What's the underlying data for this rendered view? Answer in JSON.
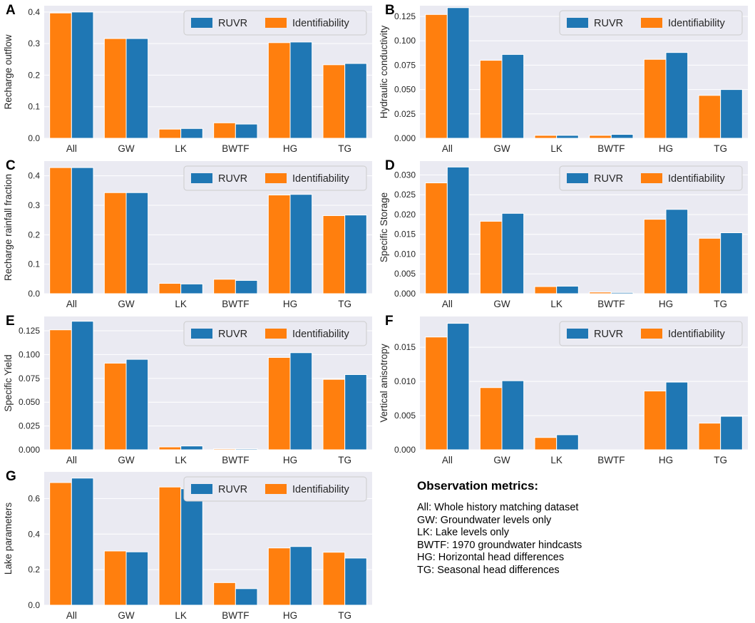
{
  "colors": {
    "ruvr": "#1f77b4",
    "identifiability": "#ff7f0e",
    "plot_bg": "#eaeaf2",
    "grid": "#ffffff"
  },
  "chart_data": [
    {
      "type": "bar",
      "panel_label": "A",
      "ylabel": "Recharge outflow",
      "categories": [
        "All",
        "GW",
        "LK",
        "BWTF",
        "HG",
        "TG"
      ],
      "ylim": [
        0,
        0.42
      ],
      "yticks": [
        0.0,
        0.1,
        0.2,
        0.3,
        0.4
      ],
      "tick_labels": [
        "0.0",
        "0.1",
        "0.2",
        "0.3",
        "0.4"
      ],
      "legend": [
        "RUVR",
        "Identifiability"
      ],
      "legend_loc": "top-right",
      "series": [
        {
          "name": "Identifiability",
          "color": "#ff7f0e",
          "values": [
            0.397,
            0.316,
            0.029,
            0.049,
            0.303,
            0.233
          ]
        },
        {
          "name": "RUVR",
          "color": "#1f77b4",
          "values": [
            0.4,
            0.316,
            0.031,
            0.045,
            0.305,
            0.237
          ]
        }
      ]
    },
    {
      "type": "bar",
      "panel_label": "B",
      "ylabel": "Hydraulic conductivity",
      "categories": [
        "All",
        "GW",
        "LK",
        "BWTF",
        "HG",
        "TG"
      ],
      "ylim": [
        0,
        0.136
      ],
      "yticks": [
        0.0,
        0.025,
        0.05,
        0.075,
        0.1,
        0.125
      ],
      "tick_labels": [
        "0.000",
        "0.025",
        "0.050",
        "0.075",
        "0.100",
        "0.125"
      ],
      "legend": [
        "RUVR",
        "Identifiability"
      ],
      "legend_loc": "top-right",
      "series": [
        {
          "name": "Identifiability",
          "color": "#ff7f0e",
          "values": [
            0.127,
            0.08,
            0.003,
            0.003,
            0.081,
            0.044
          ]
        },
        {
          "name": "RUVR",
          "color": "#1f77b4",
          "values": [
            0.134,
            0.086,
            0.003,
            0.004,
            0.088,
            0.05
          ]
        }
      ]
    },
    {
      "type": "bar",
      "panel_label": "C",
      "ylabel": "Recharge rainfall fraction",
      "categories": [
        "All",
        "GW",
        "LK",
        "BWTF",
        "HG",
        "TG"
      ],
      "ylim": [
        0,
        0.45
      ],
      "yticks": [
        0.0,
        0.1,
        0.2,
        0.3,
        0.4
      ],
      "tick_labels": [
        "0.0",
        "0.1",
        "0.2",
        "0.3",
        "0.4"
      ],
      "legend": [
        "RUVR",
        "Identifiability"
      ],
      "legend_loc": "top-right",
      "series": [
        {
          "name": "Identifiability",
          "color": "#ff7f0e",
          "values": [
            0.428,
            0.343,
            0.035,
            0.049,
            0.335,
            0.265
          ]
        },
        {
          "name": "RUVR",
          "color": "#1f77b4",
          "values": [
            0.428,
            0.343,
            0.033,
            0.045,
            0.337,
            0.267
          ]
        }
      ]
    },
    {
      "type": "bar",
      "panel_label": "D",
      "ylabel": "Specific Storage",
      "categories": [
        "All",
        "GW",
        "LK",
        "BWTF",
        "HG",
        "TG"
      ],
      "ylim": [
        0,
        0.0335
      ],
      "yticks": [
        0.0,
        0.005,
        0.01,
        0.015,
        0.02,
        0.025,
        0.03
      ],
      "tick_labels": [
        "0.000",
        "0.005",
        "0.010",
        "0.015",
        "0.020",
        "0.025",
        "0.030"
      ],
      "legend": [
        "RUVR",
        "Identifiability"
      ],
      "legend_loc": "top-right",
      "series": [
        {
          "name": "Identifiability",
          "color": "#ff7f0e",
          "values": [
            0.028,
            0.0183,
            0.0018,
            0.0004,
            0.0188,
            0.014
          ]
        },
        {
          "name": "RUVR",
          "color": "#1f77b4",
          "values": [
            0.032,
            0.0203,
            0.0019,
            0.0003,
            0.0213,
            0.0154
          ]
        }
      ]
    },
    {
      "type": "bar",
      "panel_label": "E",
      "ylabel": "Specific Yield",
      "categories": [
        "All",
        "GW",
        "LK",
        "BWTF",
        "HG",
        "TG"
      ],
      "ylim": [
        0,
        0.14
      ],
      "yticks": [
        0.0,
        0.025,
        0.05,
        0.075,
        0.1,
        0.125
      ],
      "tick_labels": [
        "0.000",
        "0.025",
        "0.050",
        "0.075",
        "0.100",
        "0.125"
      ],
      "legend": [
        "RUVR",
        "Identifiability"
      ],
      "legend_loc": "top-right",
      "series": [
        {
          "name": "Identifiability",
          "color": "#ff7f0e",
          "values": [
            0.126,
            0.091,
            0.003,
            0.001,
            0.097,
            0.074
          ]
        },
        {
          "name": "RUVR",
          "color": "#1f77b4",
          "values": [
            0.135,
            0.095,
            0.004,
            0.001,
            0.102,
            0.079
          ]
        }
      ]
    },
    {
      "type": "bar",
      "panel_label": "F",
      "ylabel": "Vertical anisotropy",
      "categories": [
        "All",
        "GW",
        "LK",
        "BWTF",
        "HG",
        "TG"
      ],
      "ylim": [
        0,
        0.0195
      ],
      "yticks": [
        0.0,
        0.005,
        0.01,
        0.015
      ],
      "tick_labels": [
        "0.000",
        "0.005",
        "0.010",
        "0.015"
      ],
      "legend": [
        "RUVR",
        "Identifiability"
      ],
      "legend_loc": "top-right",
      "series": [
        {
          "name": "Identifiability",
          "color": "#ff7f0e",
          "values": [
            0.0165,
            0.0091,
            0.0018,
            0.0,
            0.0086,
            0.0039
          ]
        },
        {
          "name": "RUVR",
          "color": "#1f77b4",
          "values": [
            0.0185,
            0.0101,
            0.0022,
            0.0,
            0.0099,
            0.0049
          ]
        }
      ]
    },
    {
      "type": "bar",
      "panel_label": "G",
      "ylabel": "Lake parameters",
      "categories": [
        "All",
        "GW",
        "LK",
        "BWTF",
        "HG",
        "TG"
      ],
      "ylim": [
        0,
        0.75
      ],
      "yticks": [
        0.0,
        0.2,
        0.4,
        0.6
      ],
      "tick_labels": [
        "0.0",
        "0.2",
        "0.4",
        "0.6"
      ],
      "legend": [
        "RUVR",
        "Identifiability"
      ],
      "legend_loc": "top-right",
      "series": [
        {
          "name": "Identifiability",
          "color": "#ff7f0e",
          "values": [
            0.69,
            0.305,
            0.665,
            0.127,
            0.322,
            0.298
          ]
        },
        {
          "name": "RUVR",
          "color": "#1f77b4",
          "values": [
            0.715,
            0.3,
            0.655,
            0.093,
            0.33,
            0.265
          ]
        }
      ]
    }
  ],
  "metrics": {
    "title": "Observation metrics:",
    "lines": [
      "All: Whole history matching dataset",
      "GW: Groundwater levels only",
      "LK: Lake levels only",
      "BWTF: 1970 groundwater hindcasts",
      "HG: Horizontal head differences",
      "TG: Seasonal head differences"
    ]
  }
}
